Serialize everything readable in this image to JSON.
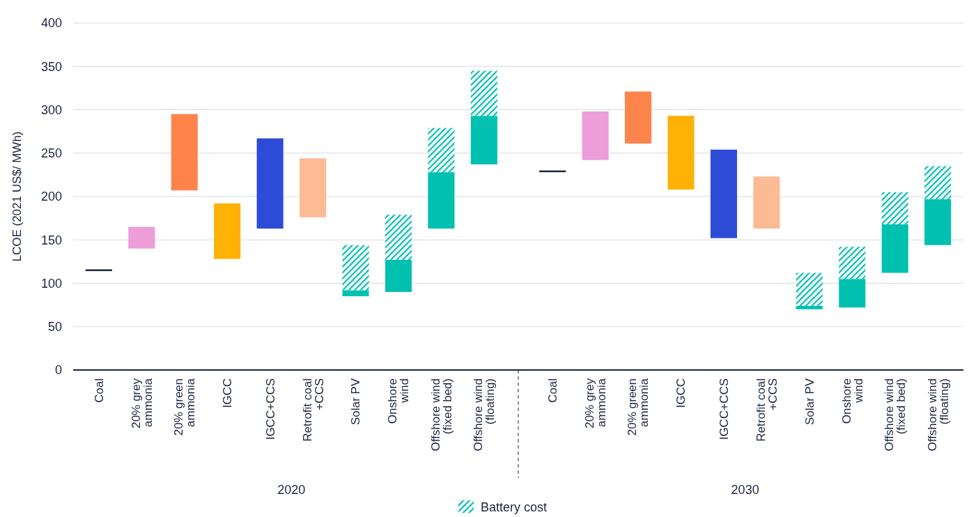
{
  "chart_data": {
    "type": "bar",
    "ylabel": "LCOE (2021 US$/ MWh)",
    "categories": [
      "Coal",
      "20% grey\nammonia",
      "20% green\nammonia",
      "IGCC",
      "IGCC+CCS",
      "Retrofit coal\n+CCS",
      "Solar PV",
      "Onshore\nwind",
      "Offshore wind\n(fixed bed)",
      "Offshore wind\n(floating)",
      "Coal",
      "20% grey\nammonia",
      "20% green\nammonia",
      "IGCC",
      "IGCC+CCS",
      "Retrofit coal\n+CCS",
      "Solar PV",
      "Onshore\nwind",
      "Offshore wind\n(fixed bed)",
      "Offshore wind\n(floating)"
    ],
    "series": [
      {
        "base": [
          114,
          140,
          207,
          128,
          163,
          176,
          85,
          90,
          163,
          237,
          228,
          242,
          261,
          208,
          152,
          163,
          70,
          72,
          112,
          144
        ],
        "colors": [
          "#1b2440",
          "#ed9dd8",
          "#ff844b",
          "#ffb205",
          "#2e4bd8",
          "#fdbb95",
          "#00c0b0",
          "#00c0b0",
          "#00c0b0",
          "#00c0b0",
          "#1b2440",
          "#ed9dd8",
          "#ff844b",
          "#ffb205",
          "#2e4bd8",
          "#fdbb95",
          "#00c0b0",
          "#00c0b0",
          "#00c0b0",
          "#00c0b0"
        ],
        "values": [
          2,
          25,
          88,
          64,
          104,
          68,
          7,
          37,
          65,
          56,
          2,
          56,
          60,
          85,
          102,
          60,
          4,
          33,
          56,
          53
        ]
      },
      {
        "name": "Battery cost",
        "color": "#00c0b0",
        "base": [
          null,
          null,
          null,
          null,
          null,
          null,
          92,
          127,
          228,
          293,
          null,
          null,
          null,
          null,
          null,
          null,
          74,
          105,
          168,
          197
        ],
        "values": [
          null,
          null,
          null,
          null,
          null,
          null,
          52,
          52,
          51,
          52,
          null,
          null,
          null,
          null,
          null,
          null,
          38,
          37,
          37,
          38
        ]
      }
    ],
    "ylim": [
      0,
      400
    ],
    "yticks": [
      0,
      50,
      100,
      150,
      200,
      250,
      300,
      350,
      400
    ],
    "grid": "y",
    "legend": "bottom",
    "annotations": [
      "2020",
      "2030"
    ]
  }
}
